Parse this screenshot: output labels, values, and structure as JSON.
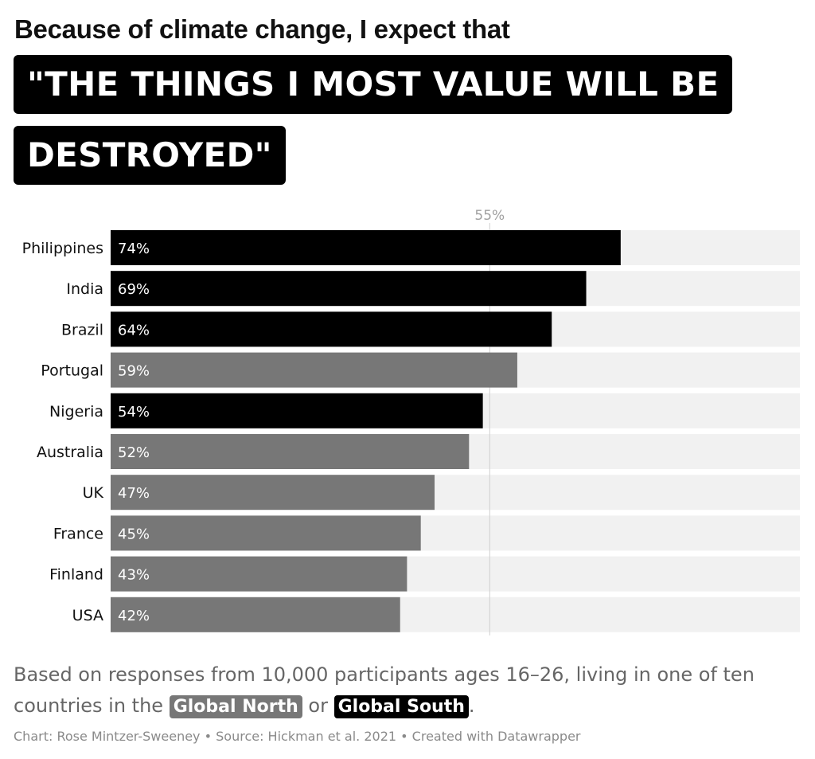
{
  "header": {
    "line1": "Because of climate change, I expect that",
    "highlight_line1": "\"THE THINGS I MOST VALUE WILL BE",
    "highlight_line2": "DESTROYED\""
  },
  "chart_data": {
    "type": "bar",
    "orientation": "horizontal",
    "categories": [
      "Philippines",
      "India",
      "Brazil",
      "Portugal",
      "Nigeria",
      "Australia",
      "UK",
      "France",
      "Finland",
      "USA"
    ],
    "values": [
      74,
      69,
      64,
      59,
      54,
      52,
      47,
      45,
      43,
      42
    ],
    "value_labels": [
      "74%",
      "69%",
      "64%",
      "59%",
      "54%",
      "52%",
      "47%",
      "45%",
      "43%",
      "42%"
    ],
    "groups": [
      "Global South",
      "Global South",
      "Global South",
      "Global North",
      "Global South",
      "Global North",
      "Global North",
      "Global North",
      "Global North",
      "Global North"
    ],
    "group_colors": {
      "Global South": "#000000",
      "Global North": "#777777"
    },
    "background_bar_color": "#f1f1f1",
    "xlim": [
      0,
      100
    ],
    "reference_line": {
      "value": 55,
      "label": "55%"
    }
  },
  "description": {
    "text_before": "Based on responses from 10,000 participants ages 16–26, living in one of ten countries in the",
    "north_label": "Global North",
    "connector": "or",
    "south_label": "Global South",
    "period": "."
  },
  "footer": "Chart: Rose Mintzer-Sweeney • Source: Hickman et al. 2021 • Created with Datawrapper"
}
